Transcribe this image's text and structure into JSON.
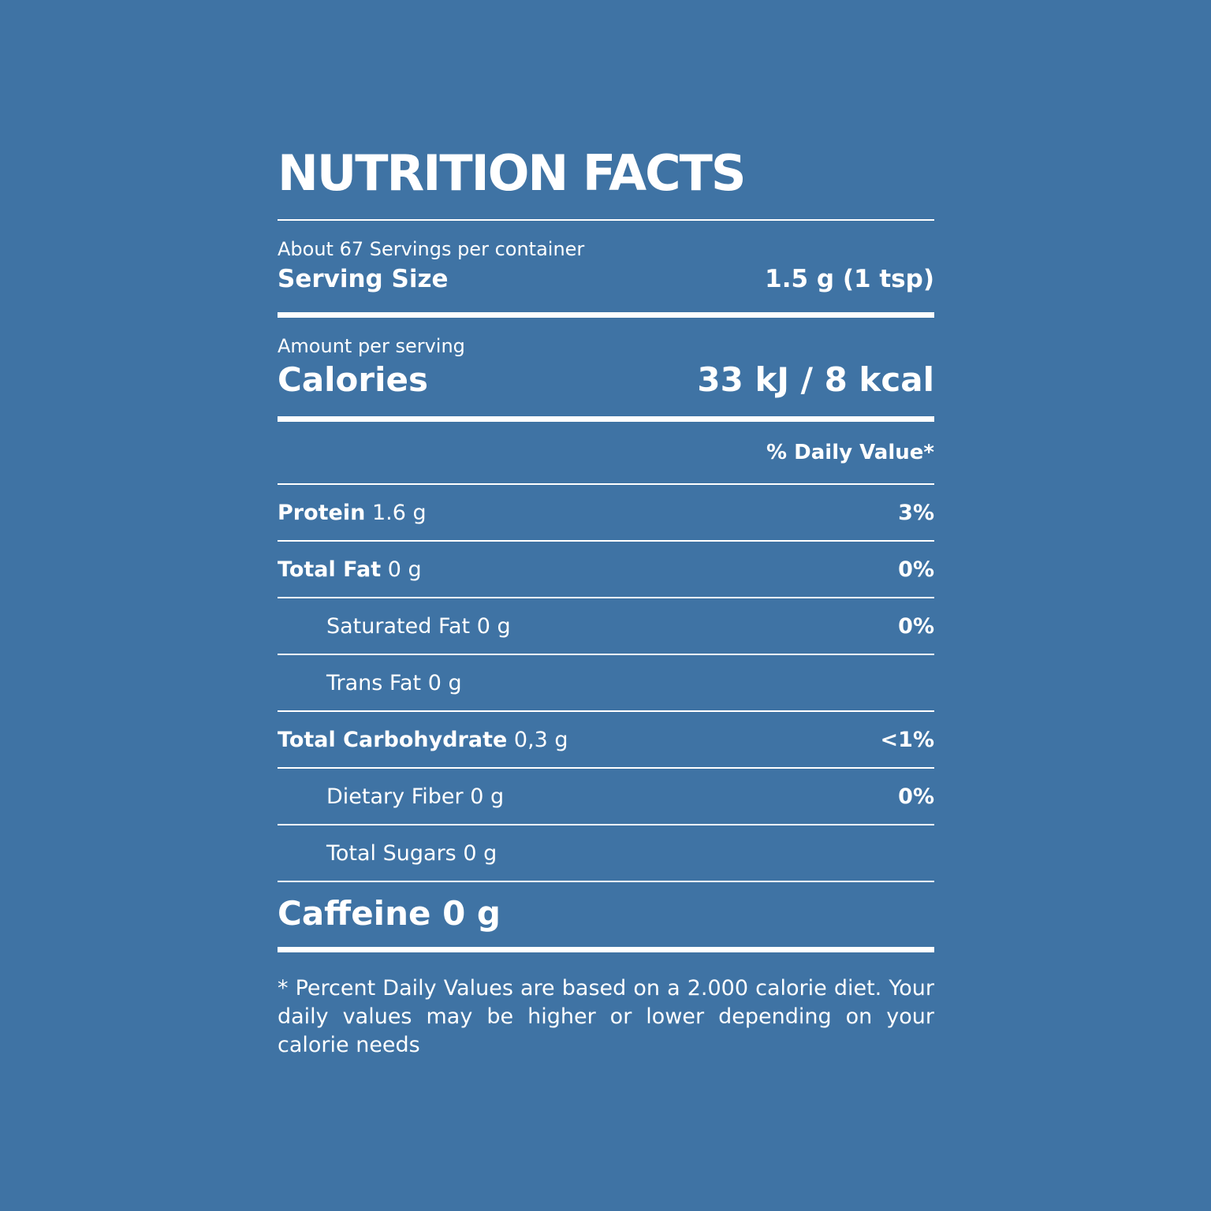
{
  "title": "NUTRITION FACTS",
  "servings": "About 67 Servings per container",
  "serving_size": {
    "label": "Serving Size",
    "value": "1.5 g (1 tsp)"
  },
  "amount_per_serving": "Amount per serving",
  "calories": {
    "label": "Calories",
    "value": "33 kJ / 8 kcal"
  },
  "daily_value_header": "% Daily Value*",
  "rows": [
    {
      "name": "Protein",
      "amount": "1.6 g",
      "dv": "3%"
    },
    {
      "name": "Total Fat",
      "amount": "0 g",
      "dv": "0%"
    },
    {
      "name": "Saturated Fat 0 g",
      "dv": "0%"
    },
    {
      "name": "Trans Fat 0 g"
    },
    {
      "name": "Total Carbohydrate",
      "amount": "0,3 g",
      "dv": "<1%"
    },
    {
      "name": "Dietary Fiber 0 g",
      "dv": "0%"
    },
    {
      "name": "Total Sugars 0 g"
    }
  ],
  "caffeine": "Caffeine 0 g",
  "footnote": "* Percent Daily Values are based on a 2.000 calorie diet. Your daily values may be higher or lower depending on your calorie needs"
}
